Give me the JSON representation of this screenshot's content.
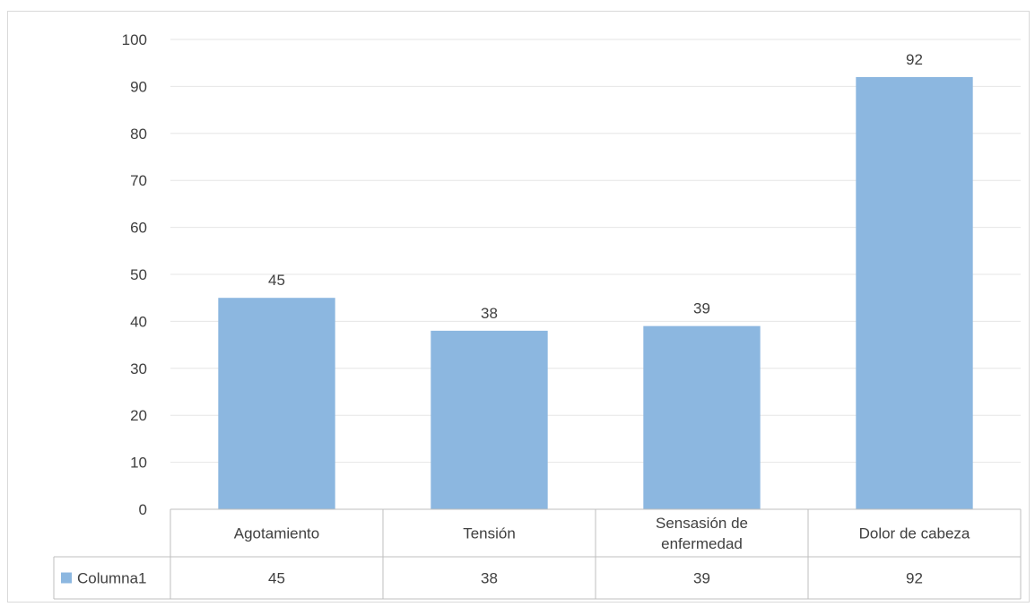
{
  "chart_data": {
    "type": "bar",
    "categories": [
      "Agotamiento",
      "Tensión",
      "Sensasión de enfermedad",
      "Dolor de cabeza"
    ],
    "category_lines": [
      [
        "Agotamiento"
      ],
      [
        "Tensión"
      ],
      [
        "Sensasión de",
        "enfermedad"
      ],
      [
        "Dolor de cabeza"
      ]
    ],
    "series": [
      {
        "name": "Columna1",
        "values": [
          45,
          38,
          39,
          92
        ],
        "color": "#8cb7e0"
      }
    ],
    "ylim": [
      0,
      100
    ],
    "yticks": [
      0,
      10,
      20,
      30,
      40,
      50,
      60,
      70,
      80,
      90,
      100
    ],
    "grid": true,
    "data_labels": true,
    "data_table": true,
    "legend": "data-table"
  },
  "colors": {
    "bar": "#8cb7e0",
    "grid": "#e6e6e6",
    "table_border": "#bfbfbf",
    "text": "#404040"
  }
}
